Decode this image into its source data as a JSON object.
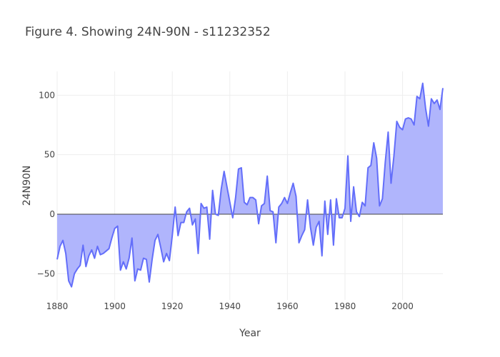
{
  "chart_data": {
    "type": "area",
    "title": "Figure 4. Showing 24N-90N - s11232352",
    "xlabel": "Year",
    "ylabel": "24N90N",
    "xlim": [
      1880,
      2014
    ],
    "ylim": [
      -72,
      120
    ],
    "x_ticks": [
      1880,
      1900,
      1920,
      1940,
      1960,
      1980,
      2000
    ],
    "y_ticks": [
      -50,
      0,
      50,
      100
    ],
    "grid": true,
    "fill_to": "zero",
    "colors": {
      "line": "#636efa",
      "fill": "#b0b5fc"
    },
    "x": [
      1880,
      1881,
      1882,
      1883,
      1884,
      1885,
      1886,
      1887,
      1888,
      1889,
      1890,
      1891,
      1892,
      1893,
      1894,
      1895,
      1896,
      1897,
      1898,
      1899,
      1900,
      1901,
      1902,
      1903,
      1904,
      1905,
      1906,
      1907,
      1908,
      1909,
      1910,
      1911,
      1912,
      1913,
      1914,
      1915,
      1916,
      1917,
      1918,
      1919,
      1920,
      1921,
      1922,
      1923,
      1924,
      1925,
      1926,
      1927,
      1928,
      1929,
      1930,
      1931,
      1932,
      1933,
      1934,
      1935,
      1936,
      1937,
      1938,
      1939,
      1940,
      1941,
      1942,
      1943,
      1944,
      1945,
      1946,
      1947,
      1948,
      1949,
      1950,
      1951,
      1952,
      1953,
      1954,
      1955,
      1956,
      1957,
      1958,
      1959,
      1960,
      1961,
      1962,
      1963,
      1964,
      1965,
      1966,
      1967,
      1968,
      1969,
      1970,
      1971,
      1972,
      1973,
      1974,
      1975,
      1976,
      1977,
      1978,
      1979,
      1980,
      1981,
      1982,
      1983,
      1984,
      1985,
      1986,
      1987,
      1988,
      1989,
      1990,
      1991,
      1992,
      1993,
      1994,
      1995,
      1996,
      1997,
      1998,
      1999,
      2000,
      2001,
      2002,
      2003,
      2004,
      2005,
      2006,
      2007,
      2008,
      2009,
      2010,
      2011,
      2012,
      2013,
      2014
    ],
    "values": [
      -38,
      -27,
      -22,
      -33,
      -56,
      -61,
      -50,
      -46,
      -43,
      -26,
      -44,
      -35,
      -30,
      -37,
      -27,
      -34,
      -33,
      -31,
      -29,
      -20,
      -12,
      -10,
      -47,
      -40,
      -46,
      -37,
      -20,
      -56,
      -46,
      -47,
      -37,
      -38,
      -57,
      -38,
      -22,
      -17,
      -28,
      -40,
      -33,
      -39,
      -18,
      6,
      -18,
      -7,
      -7,
      2,
      5,
      -9,
      -4,
      -33,
      9,
      5,
      6,
      -21,
      20,
      0,
      -1,
      21,
      36,
      23,
      10,
      -3,
      14,
      38,
      39,
      10,
      8,
      14,
      14,
      12,
      -8,
      7,
      9,
      32,
      3,
      2,
      -24,
      6,
      9,
      14,
      9,
      18,
      26,
      15,
      -24,
      -18,
      -13,
      12,
      -11,
      -26,
      -11,
      -6,
      -35,
      11,
      -17,
      12,
      -26,
      13,
      -3,
      -3,
      5,
      49,
      -6,
      23,
      2,
      -2,
      10,
      7,
      39,
      41,
      60,
      47,
      7,
      13,
      44,
      69,
      26,
      49,
      78,
      73,
      71,
      80,
      81,
      80,
      75,
      99,
      97,
      110,
      89,
      74,
      97,
      93,
      96,
      88,
      106
    ]
  }
}
